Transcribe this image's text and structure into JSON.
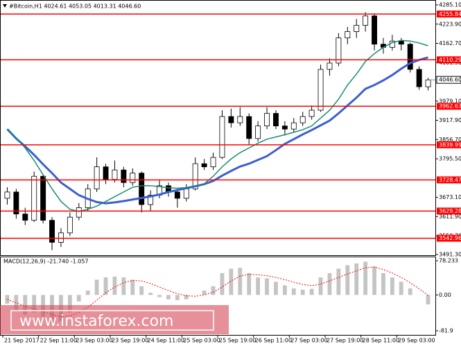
{
  "chart_data": [
    {
      "type": "candlestick",
      "title": "#Bitcoin,H1  4024.61 4053.05 4013.31 4046.60",
      "watermark": "www.instaforex.com",
      "categories": [
        "21 Sep 2017",
        null,
        null,
        null,
        "22 Sep 11:00",
        null,
        null,
        null,
        "23 Sep 03:00",
        null,
        null,
        null,
        "23 Sep 19:00",
        null,
        null,
        null,
        "24 Sep 11:00",
        null,
        null,
        null,
        "25 Sep 03:00",
        null,
        null,
        null,
        "25 Sep 19:00",
        null,
        null,
        null,
        "26 Sep 11:00",
        null,
        null,
        null,
        "27 Sep 03:00",
        null,
        null,
        null,
        "27 Sep 19:00",
        null,
        null,
        null,
        "28 Sep 11:00",
        null,
        null,
        null,
        "29 Sep 03:00",
        null,
        null,
        null
      ],
      "candles": [
        [
          3670,
          3705,
          3650,
          3690
        ],
        [
          3690,
          3700,
          3605,
          3620
        ],
        [
          3620,
          3640,
          3585,
          3600
        ],
        [
          3600,
          3755,
          3595,
          3740
        ],
        [
          3740,
          3745,
          3590,
          3600
        ],
        [
          3600,
          3610,
          3505,
          3530
        ],
        [
          3530,
          3575,
          3515,
          3560
        ],
        [
          3560,
          3625,
          3550,
          3610
        ],
        [
          3610,
          3655,
          3600,
          3640
        ],
        [
          3640,
          3715,
          3630,
          3700
        ],
        [
          3700,
          3800,
          3690,
          3770
        ],
        [
          3770,
          3780,
          3715,
          3730
        ],
        [
          3730,
          3790,
          3720,
          3760
        ],
        [
          3760,
          3770,
          3705,
          3720
        ],
        [
          3720,
          3765,
          3710,
          3750
        ],
        [
          3750,
          3755,
          3625,
          3650
        ],
        [
          3650,
          3695,
          3630,
          3680
        ],
        [
          3680,
          3730,
          3670,
          3710
        ],
        [
          3710,
          3720,
          3675,
          3690
        ],
        [
          3690,
          3700,
          3640,
          3670
        ],
        [
          3670,
          3715,
          3660,
          3700
        ],
        [
          3700,
          3800,
          3695,
          3780
        ],
        [
          3780,
          3795,
          3760,
          3770
        ],
        [
          3770,
          3815,
          3760,
          3800
        ],
        [
          3800,
          3950,
          3795,
          3930
        ],
        [
          3930,
          3955,
          3895,
          3910
        ],
        [
          3910,
          3960,
          3900,
          3930
        ],
        [
          3930,
          3940,
          3840,
          3860
        ],
        [
          3860,
          3915,
          3850,
          3900
        ],
        [
          3900,
          3960,
          3890,
          3940
        ],
        [
          3940,
          3950,
          3890,
          3900
        ],
        [
          3900,
          3915,
          3870,
          3890
        ],
        [
          3890,
          3925,
          3880,
          3910
        ],
        [
          3910,
          3945,
          3900,
          3930
        ],
        [
          3930,
          3965,
          3920,
          3950
        ],
        [
          3950,
          4095,
          3945,
          4080
        ],
        [
          4080,
          4115,
          4060,
          4100
        ],
        [
          4100,
          4195,
          4090,
          4180
        ],
        [
          4180,
          4215,
          4160,
          4200
        ],
        [
          4200,
          4240,
          4180,
          4220
        ],
        [
          4220,
          4262,
          4200,
          4250
        ],
        [
          4250,
          4258,
          4140,
          4160
        ],
        [
          4160,
          4180,
          4130,
          4150
        ],
        [
          4150,
          4190,
          4140,
          4170
        ],
        [
          4170,
          4180,
          4140,
          4160
        ],
        [
          4160,
          4165,
          4070,
          4080
        ],
        [
          4080,
          4090,
          4015,
          4024.61
        ],
        [
          4024.61,
          4053.05,
          4013.31,
          4046.6
        ]
      ],
      "series": [
        {
          "color": "#3b5fd0",
          "values": [
            3890,
            3860,
            3835,
            3808,
            3778,
            3750,
            3720,
            3700,
            3680,
            3668,
            3658,
            3654,
            3657,
            3661,
            3666,
            3671,
            3676,
            3682,
            3690,
            3696,
            3702,
            3708,
            3715,
            3725,
            3742,
            3757,
            3771,
            3780,
            3792,
            3804,
            3823,
            3843,
            3858,
            3873,
            3887,
            3902,
            3917,
            3940,
            3965,
            3990,
            4018,
            4030,
            4045,
            4062,
            4082,
            4100,
            4110,
            4118
          ]
        },
        {
          "color": "#168a78",
          "values": [
            3890,
            3862,
            3830,
            3790,
            3745,
            3700,
            3660,
            3635,
            3628,
            3635,
            3645,
            3660,
            3675,
            3690,
            3705,
            3710,
            3710,
            3707,
            3703,
            3702,
            3704,
            3710,
            3716,
            3740,
            3770,
            3795,
            3815,
            3830,
            3845,
            3858,
            3865,
            3872,
            3880,
            3888,
            3900,
            3925,
            3950,
            3985,
            4030,
            4065,
            4105,
            4130,
            4150,
            4165,
            4172,
            4170,
            4164,
            4155
          ]
        }
      ],
      "levels": [
        4255.84,
        4110.29,
        3962.63,
        3839.99,
        3728.47,
        3629.28,
        3542.96
      ],
      "level_color": "#ff0000",
      "last_price": {
        "value": 4046.6,
        "label": "4046.60"
      },
      "ylim": [
        3491.3,
        4285.1
      ],
      "yticks": [
        {
          "value": 4285.1,
          "label": "4285.10"
        },
        {
          "value": 4223.9,
          "label": "4223.90"
        },
        {
          "value": 4162.7,
          "label": "4162.70"
        },
        {
          "value": 4101.5,
          "label": "4101.50"
        },
        {
          "value": 3979.1,
          "label": "3979.10"
        },
        {
          "value": 3917.9,
          "label": "3917.90"
        },
        {
          "value": 3856.7,
          "label": "3856.70"
        },
        {
          "value": 3795.5,
          "label": "3795.50"
        },
        {
          "value": 3673.1,
          "label": "3673.10"
        },
        {
          "value": 3611.9,
          "label": "3611.90"
        },
        {
          "value": 3550.7,
          "label": "3550.70"
        },
        {
          "value": 3491.3,
          "label": "3491.30"
        }
      ]
    },
    {
      "type": "bar",
      "title": "MACD(12,26,9) -21.740 -1.057",
      "color": "#c4c4c4",
      "values": [
        -20,
        -35,
        -45,
        -40,
        -50,
        -65,
        -60,
        -40,
        -15,
        10,
        35,
        40,
        42,
        40,
        35,
        20,
        5,
        -5,
        -10,
        -12,
        -10,
        0,
        10,
        20,
        50,
        60,
        62,
        50,
        40,
        38,
        30,
        22,
        15,
        12,
        14,
        40,
        50,
        60,
        68,
        72,
        76,
        65,
        50,
        40,
        30,
        15,
        0,
        -21.74
      ],
      "series": [
        {
          "color": "#ff0000",
          "values": [
            -10,
            -18,
            -26,
            -32,
            -38,
            -45,
            -50,
            -48,
            -40,
            -28,
            -12,
            5,
            18,
            28,
            33,
            32,
            26,
            18,
            10,
            3,
            -2,
            -3,
            0,
            6,
            18,
            32,
            43,
            47,
            46,
            44,
            40,
            35,
            29,
            24,
            21,
            25,
            32,
            40,
            48,
            55,
            62,
            64,
            58,
            50,
            40,
            28,
            14,
            -1.057
          ]
        }
      ],
      "ylim": [
        -81.9,
        78.233
      ],
      "yticks": [
        78.233,
        {
          "value": 0,
          "label": "0.00"
        },
        -81.9
      ]
    }
  ]
}
